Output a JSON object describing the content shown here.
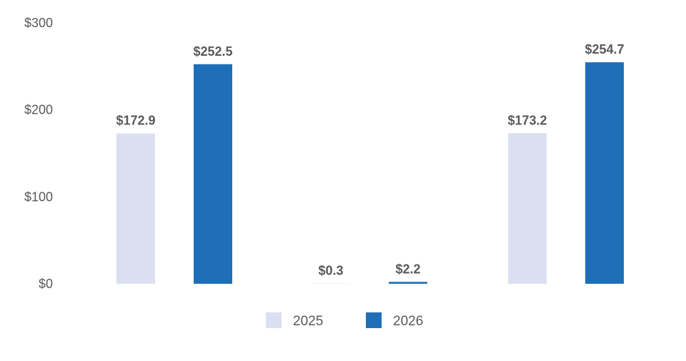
{
  "chart_data": {
    "type": "bar",
    "categories": [
      "",
      "",
      ""
    ],
    "series": [
      {
        "name": "2025",
        "color": "#dae0f1",
        "values": [
          172.9,
          0.3,
          173.2
        ],
        "labels": [
          "$172.9",
          "$0.3",
          "$173.2"
        ]
      },
      {
        "name": "2026",
        "color": "#1f6fb8",
        "values": [
          252.5,
          2.2,
          254.7
        ],
        "labels": [
          "$252.5",
          "$2.2",
          "$254.7"
        ]
      }
    ],
    "ylim": [
      0,
      300
    ],
    "yticks": [
      {
        "value": 0,
        "label": "$0"
      },
      {
        "value": 100,
        "label": "$100"
      },
      {
        "value": 200,
        "label": "$200"
      },
      {
        "value": 300,
        "label": "$300"
      }
    ],
    "title": "",
    "xlabel": "",
    "ylabel": "",
    "grid": false,
    "legend_position": "bottom-center",
    "label_color": "#595959"
  }
}
